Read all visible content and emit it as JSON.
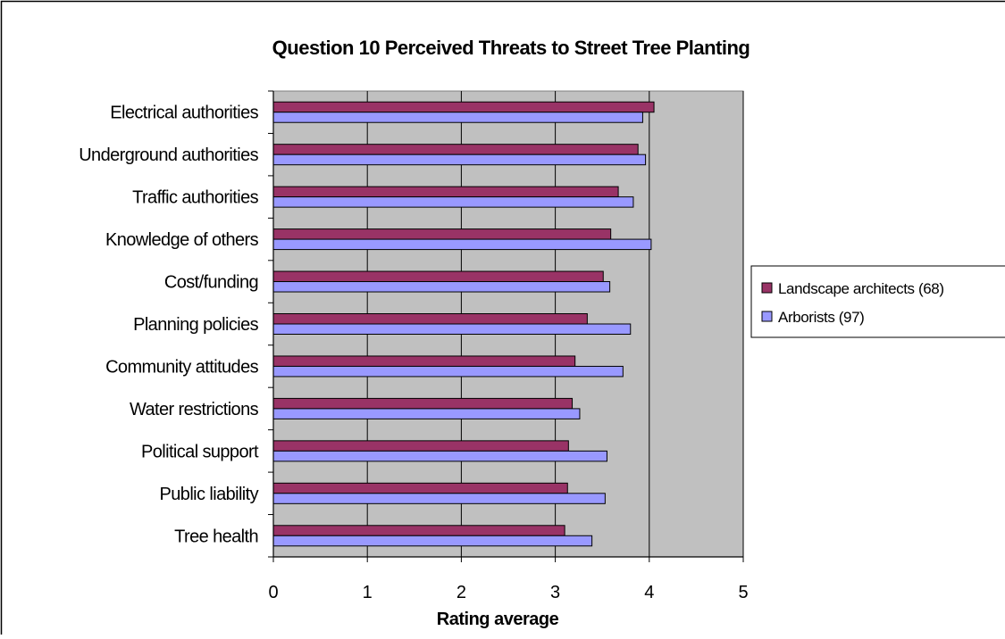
{
  "chart_data": {
    "type": "bar",
    "orientation": "horizontal",
    "title": "Question 10 Perceived Threats to Street Tree Planting",
    "xlabel": "Rating average",
    "ylabel": "",
    "xlim": [
      0,
      5
    ],
    "x_ticks": [
      "0",
      "1",
      "2",
      "3",
      "4",
      "5"
    ],
    "grid": true,
    "legend_position": "right",
    "categories": [
      "Electrical authorities",
      "Underground authorities",
      "Traffic authorities",
      "Knowledge of others",
      "Cost/funding",
      "Planning policies",
      "Community attitudes",
      "Water restrictions",
      "Political support",
      "Public liability",
      "Tree health"
    ],
    "series": [
      {
        "name": "Landscape architects (68)",
        "color": "#993366",
        "values": [
          4.05,
          3.88,
          3.67,
          3.59,
          3.51,
          3.34,
          3.21,
          3.18,
          3.14,
          3.13,
          3.1
        ]
      },
      {
        "name": "Arborists (97)",
        "color": "#9999ff",
        "values": [
          3.93,
          3.96,
          3.83,
          4.02,
          3.58,
          3.8,
          3.72,
          3.26,
          3.55,
          3.53,
          3.39
        ]
      }
    ],
    "colors": {
      "plot_background": "#c0c0c0",
      "gridline": "#000000",
      "bar_border": "#000000"
    }
  }
}
